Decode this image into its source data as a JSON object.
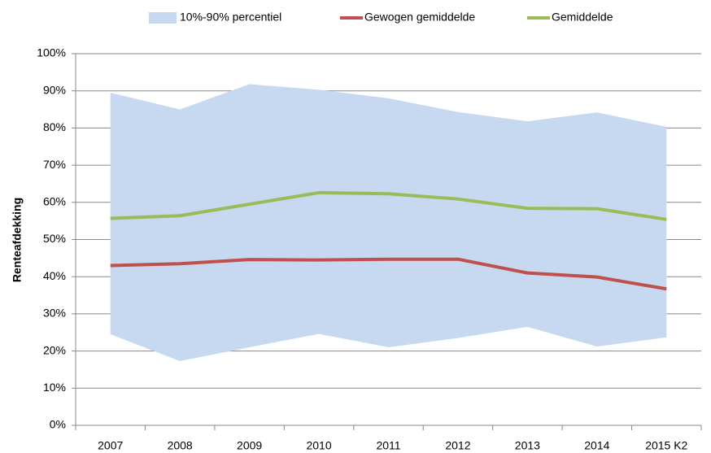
{
  "chart_data": {
    "type": "line",
    "y_label": "Renteafdekking",
    "categories": [
      "2007",
      "2008",
      "2009",
      "2010",
      "2011",
      "2012",
      "2013",
      "2014",
      "2015 K2"
    ],
    "band": {
      "name": "10%-90% percentiel",
      "color": "#c6d9f1",
      "upper": [
        89.5,
        85,
        91.8,
        90.3,
        88,
        84.3,
        81.8,
        84.2,
        80.3
      ],
      "lower": [
        24.5,
        17.3,
        21,
        24.6,
        21,
        23.5,
        26.5,
        21.2,
        23.7
      ]
    },
    "series": [
      {
        "name": "Gewogen gemiddelde",
        "color": "#c0504d",
        "values": [
          43,
          43.5,
          44.6,
          44.5,
          44.7,
          44.7,
          41,
          39.9,
          36.7
        ]
      },
      {
        "name": "Gemiddelde",
        "color": "#9bbb59",
        "values": [
          55.7,
          56.4,
          59.5,
          62.6,
          62.3,
          60.9,
          58.4,
          58.3,
          55.4
        ]
      }
    ],
    "ylim": [
      0,
      100
    ],
    "yticks": [
      {
        "value": 0,
        "label": "0%"
      },
      {
        "value": 10,
        "label": "10%"
      },
      {
        "value": 20,
        "label": "20%"
      },
      {
        "value": 30,
        "label": "30%"
      },
      {
        "value": 40,
        "label": "40%"
      },
      {
        "value": 50,
        "label": "50%"
      },
      {
        "value": 60,
        "label": "60%"
      },
      {
        "value": 70,
        "label": "70%"
      },
      {
        "value": 80,
        "label": "80%"
      },
      {
        "value": 90,
        "label": "90%"
      },
      {
        "value": 100,
        "label": "100%"
      }
    ],
    "grid": true
  }
}
